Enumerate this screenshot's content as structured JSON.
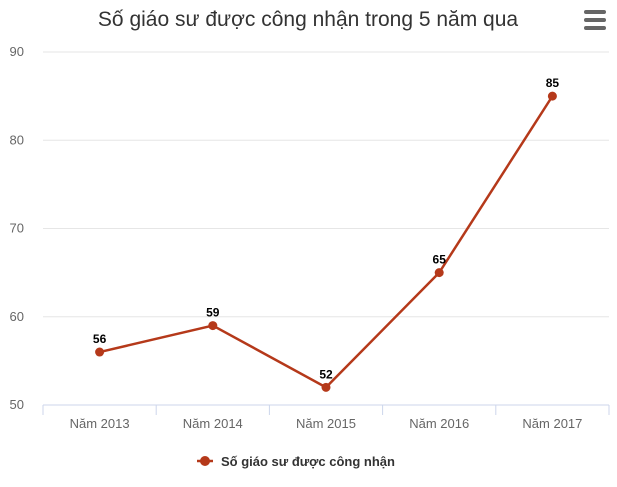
{
  "chart_data": {
    "type": "line",
    "title": "Số giáo sư được công nhận trong 5 năm qua",
    "categories": [
      "Năm 2013",
      "Năm 2014",
      "Năm 2015",
      "Năm 2016",
      "Năm 2017"
    ],
    "series": [
      {
        "name": "Số giáo sư được công nhận",
        "values": [
          56,
          59,
          52,
          65,
          85
        ],
        "color": "#b5391a"
      }
    ],
    "ylim": [
      50,
      90
    ],
    "yticks": [
      50,
      60,
      70,
      80,
      90
    ],
    "xlabel": "",
    "ylabel": "",
    "grid": true,
    "legend": "bottom-center",
    "data_labels": true
  },
  "menu_icon": "hamburger-menu-icon",
  "colors": {
    "series": "#b5391a",
    "grid": "#e6e6e6",
    "axis": "#ccd6eb",
    "text": "#333333",
    "tick_text": "#666666",
    "label_text": "#000000"
  }
}
